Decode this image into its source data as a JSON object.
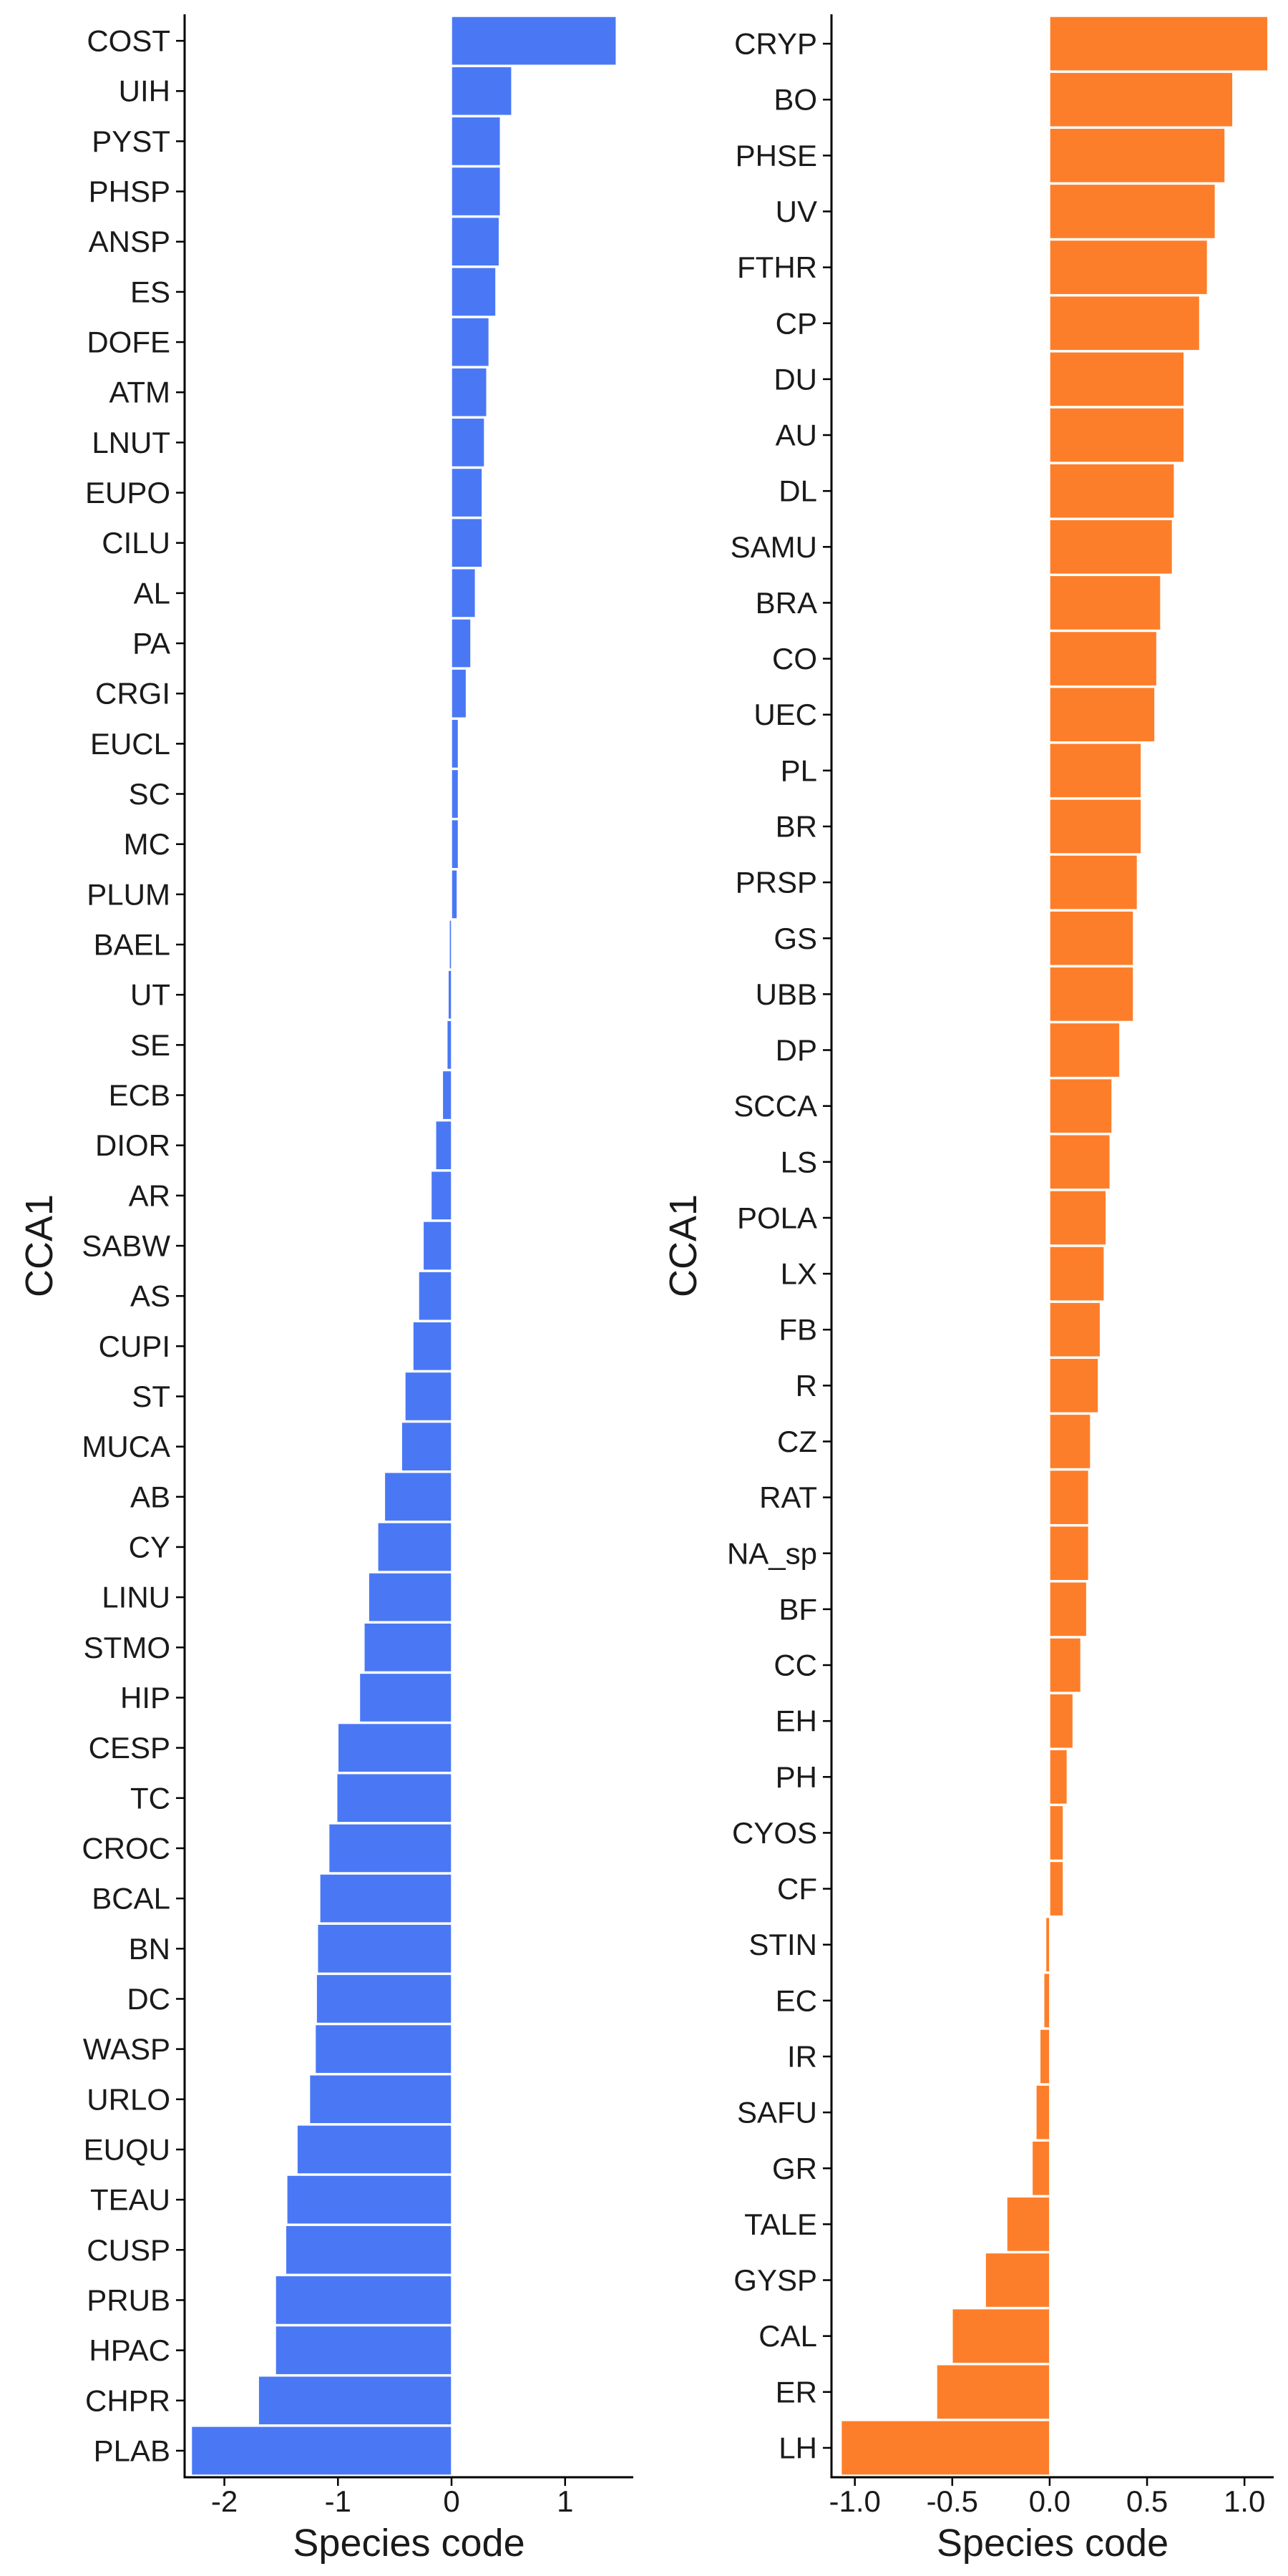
{
  "colors": {
    "left_bars": "#4a78f5",
    "right_bars": "#fd7e2a",
    "axis": "#000000",
    "bar_edge": "#ffffff"
  },
  "chart_data": [
    {
      "type": "bar",
      "orientation": "horizontal",
      "xlabel": "Species code",
      "ylabel": "CCA1",
      "xlim": [
        -2.35,
        1.6
      ],
      "xticks": [
        -2,
        -1,
        0,
        1
      ],
      "xtick_labels": [
        "-2",
        "-1",
        "0",
        "1"
      ],
      "grid": false,
      "legend": "none",
      "color": "#4a78f5",
      "categories": [
        "COST",
        "UIH",
        "PYST",
        "PHSP",
        "ANSP",
        "ES",
        "DOFE",
        "ATM",
        "LNUT",
        "EUPO",
        "CILU",
        "AL",
        "PA",
        "CRGI",
        "EUCL",
        "SC",
        "MC",
        "PLUM",
        "BAEL",
        "UT",
        "SE",
        "ECB",
        "DIOR",
        "AR",
        "SABW",
        "AS",
        "CUPI",
        "ST",
        "MUCA",
        "AB",
        "CY",
        "LINU",
        "STMO",
        "HIP",
        "CESP",
        "TC",
        "CROC",
        "BCAL",
        "BN",
        "DC",
        "WASP",
        "URLO",
        "EUQU",
        "TEAU",
        "CUSP",
        "PRUB",
        "HPAC",
        "CHPR",
        "PLAB"
      ],
      "values": [
        1.45,
        0.53,
        0.43,
        0.43,
        0.42,
        0.39,
        0.33,
        0.31,
        0.29,
        0.27,
        0.27,
        0.21,
        0.17,
        0.13,
        0.06,
        0.06,
        0.06,
        0.05,
        -0.02,
        -0.03,
        -0.04,
        -0.08,
        -0.14,
        -0.18,
        -0.25,
        -0.29,
        -0.34,
        -0.41,
        -0.44,
        -0.59,
        -0.65,
        -0.73,
        -0.77,
        -0.81,
        -1.0,
        -1.01,
        -1.08,
        -1.16,
        -1.18,
        -1.19,
        -1.2,
        -1.25,
        -1.36,
        -1.45,
        -1.46,
        -1.55,
        -1.55,
        -1.7,
        -2.29
      ]
    },
    {
      "type": "bar",
      "orientation": "horizontal",
      "xlabel": "Species code",
      "ylabel": "CCA1",
      "xlim": [
        -1.12,
        1.15
      ],
      "xticks": [
        -1.0,
        -0.5,
        0.0,
        0.5,
        1.0
      ],
      "xtick_labels": [
        "-1.0",
        "-0.5",
        "0.0",
        "0.5",
        "1.0"
      ],
      "grid": false,
      "legend": "none",
      "color": "#fd7e2a",
      "categories": [
        "CRYP",
        "BO",
        "PHSE",
        "UV",
        "FTHR",
        "CP",
        "DU",
        "AU",
        "DL",
        "SAMU",
        "BRA",
        "CO",
        "UEC",
        "PL",
        "BR",
        "PRSP",
        "GS",
        "UBB",
        "DP",
        "SCCA",
        "LS",
        "POLA",
        "LX",
        "FB",
        "R",
        "CZ",
        "RAT",
        "NA_sp",
        "BF",
        "CC",
        "EH",
        "PH",
        "CYOS",
        "CF",
        "STIN",
        "EC",
        "IR",
        "SAFU",
        "GR",
        "TALE",
        "GYSP",
        "CAL",
        "ER",
        "LH"
      ],
      "values": [
        1.12,
        0.94,
        0.9,
        0.85,
        0.81,
        0.77,
        0.69,
        0.69,
        0.64,
        0.63,
        0.57,
        0.55,
        0.54,
        0.47,
        0.47,
        0.45,
        0.43,
        0.43,
        0.36,
        0.32,
        0.31,
        0.29,
        0.28,
        0.26,
        0.25,
        0.21,
        0.2,
        0.2,
        0.19,
        0.16,
        0.12,
        0.09,
        0.07,
        0.07,
        -0.02,
        -0.03,
        -0.05,
        -0.07,
        -0.09,
        -0.22,
        -0.33,
        -0.5,
        -0.58,
        -1.07
      ]
    }
  ]
}
